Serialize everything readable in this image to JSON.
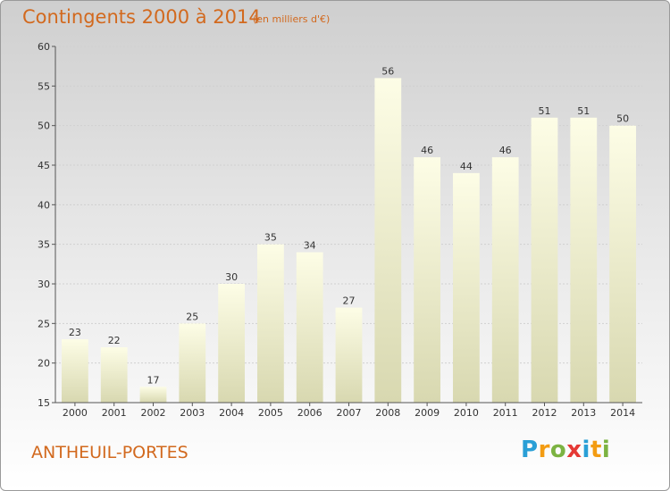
{
  "header": {
    "title": "Contingents 2000 à 2014",
    "subtitle": "(en milliers d'€)"
  },
  "footer": {
    "commune": "ANTHEUIL-PORTES",
    "logo": {
      "text": "Proxiti",
      "letters": [
        {
          "char": "P",
          "color": "#2a9fd6"
        },
        {
          "char": "r",
          "color": "#f39c12"
        },
        {
          "char": "o",
          "color": "#7cb342"
        },
        {
          "char": "x",
          "color": "#e53935"
        },
        {
          "char": "i",
          "color": "#2a9fd6"
        },
        {
          "char": "t",
          "color": "#f39c12"
        },
        {
          "char": "i",
          "color": "#7cb342"
        }
      ]
    }
  },
  "chart_data": {
    "type": "bar",
    "title": "Contingents 2000 à 2014",
    "subtitle": "(en milliers d'€)",
    "categories": [
      "2000",
      "2001",
      "2002",
      "2003",
      "2004",
      "2005",
      "2006",
      "2007",
      "2008",
      "2009",
      "2010",
      "2011",
      "2012",
      "2013",
      "2014"
    ],
    "values": [
      23,
      22,
      17,
      25,
      30,
      35,
      34,
      27,
      56,
      46,
      44,
      46,
      51,
      51,
      50
    ],
    "ylim": [
      15,
      60
    ],
    "yticks": [
      15,
      20,
      25,
      30,
      35,
      40,
      45,
      50,
      55,
      60
    ],
    "grid": true,
    "colors": {
      "bar_top": "#fdfde6",
      "bar_bottom": "#d8d8b0",
      "grid": "#d0d0d0",
      "axis": "#555555"
    }
  }
}
